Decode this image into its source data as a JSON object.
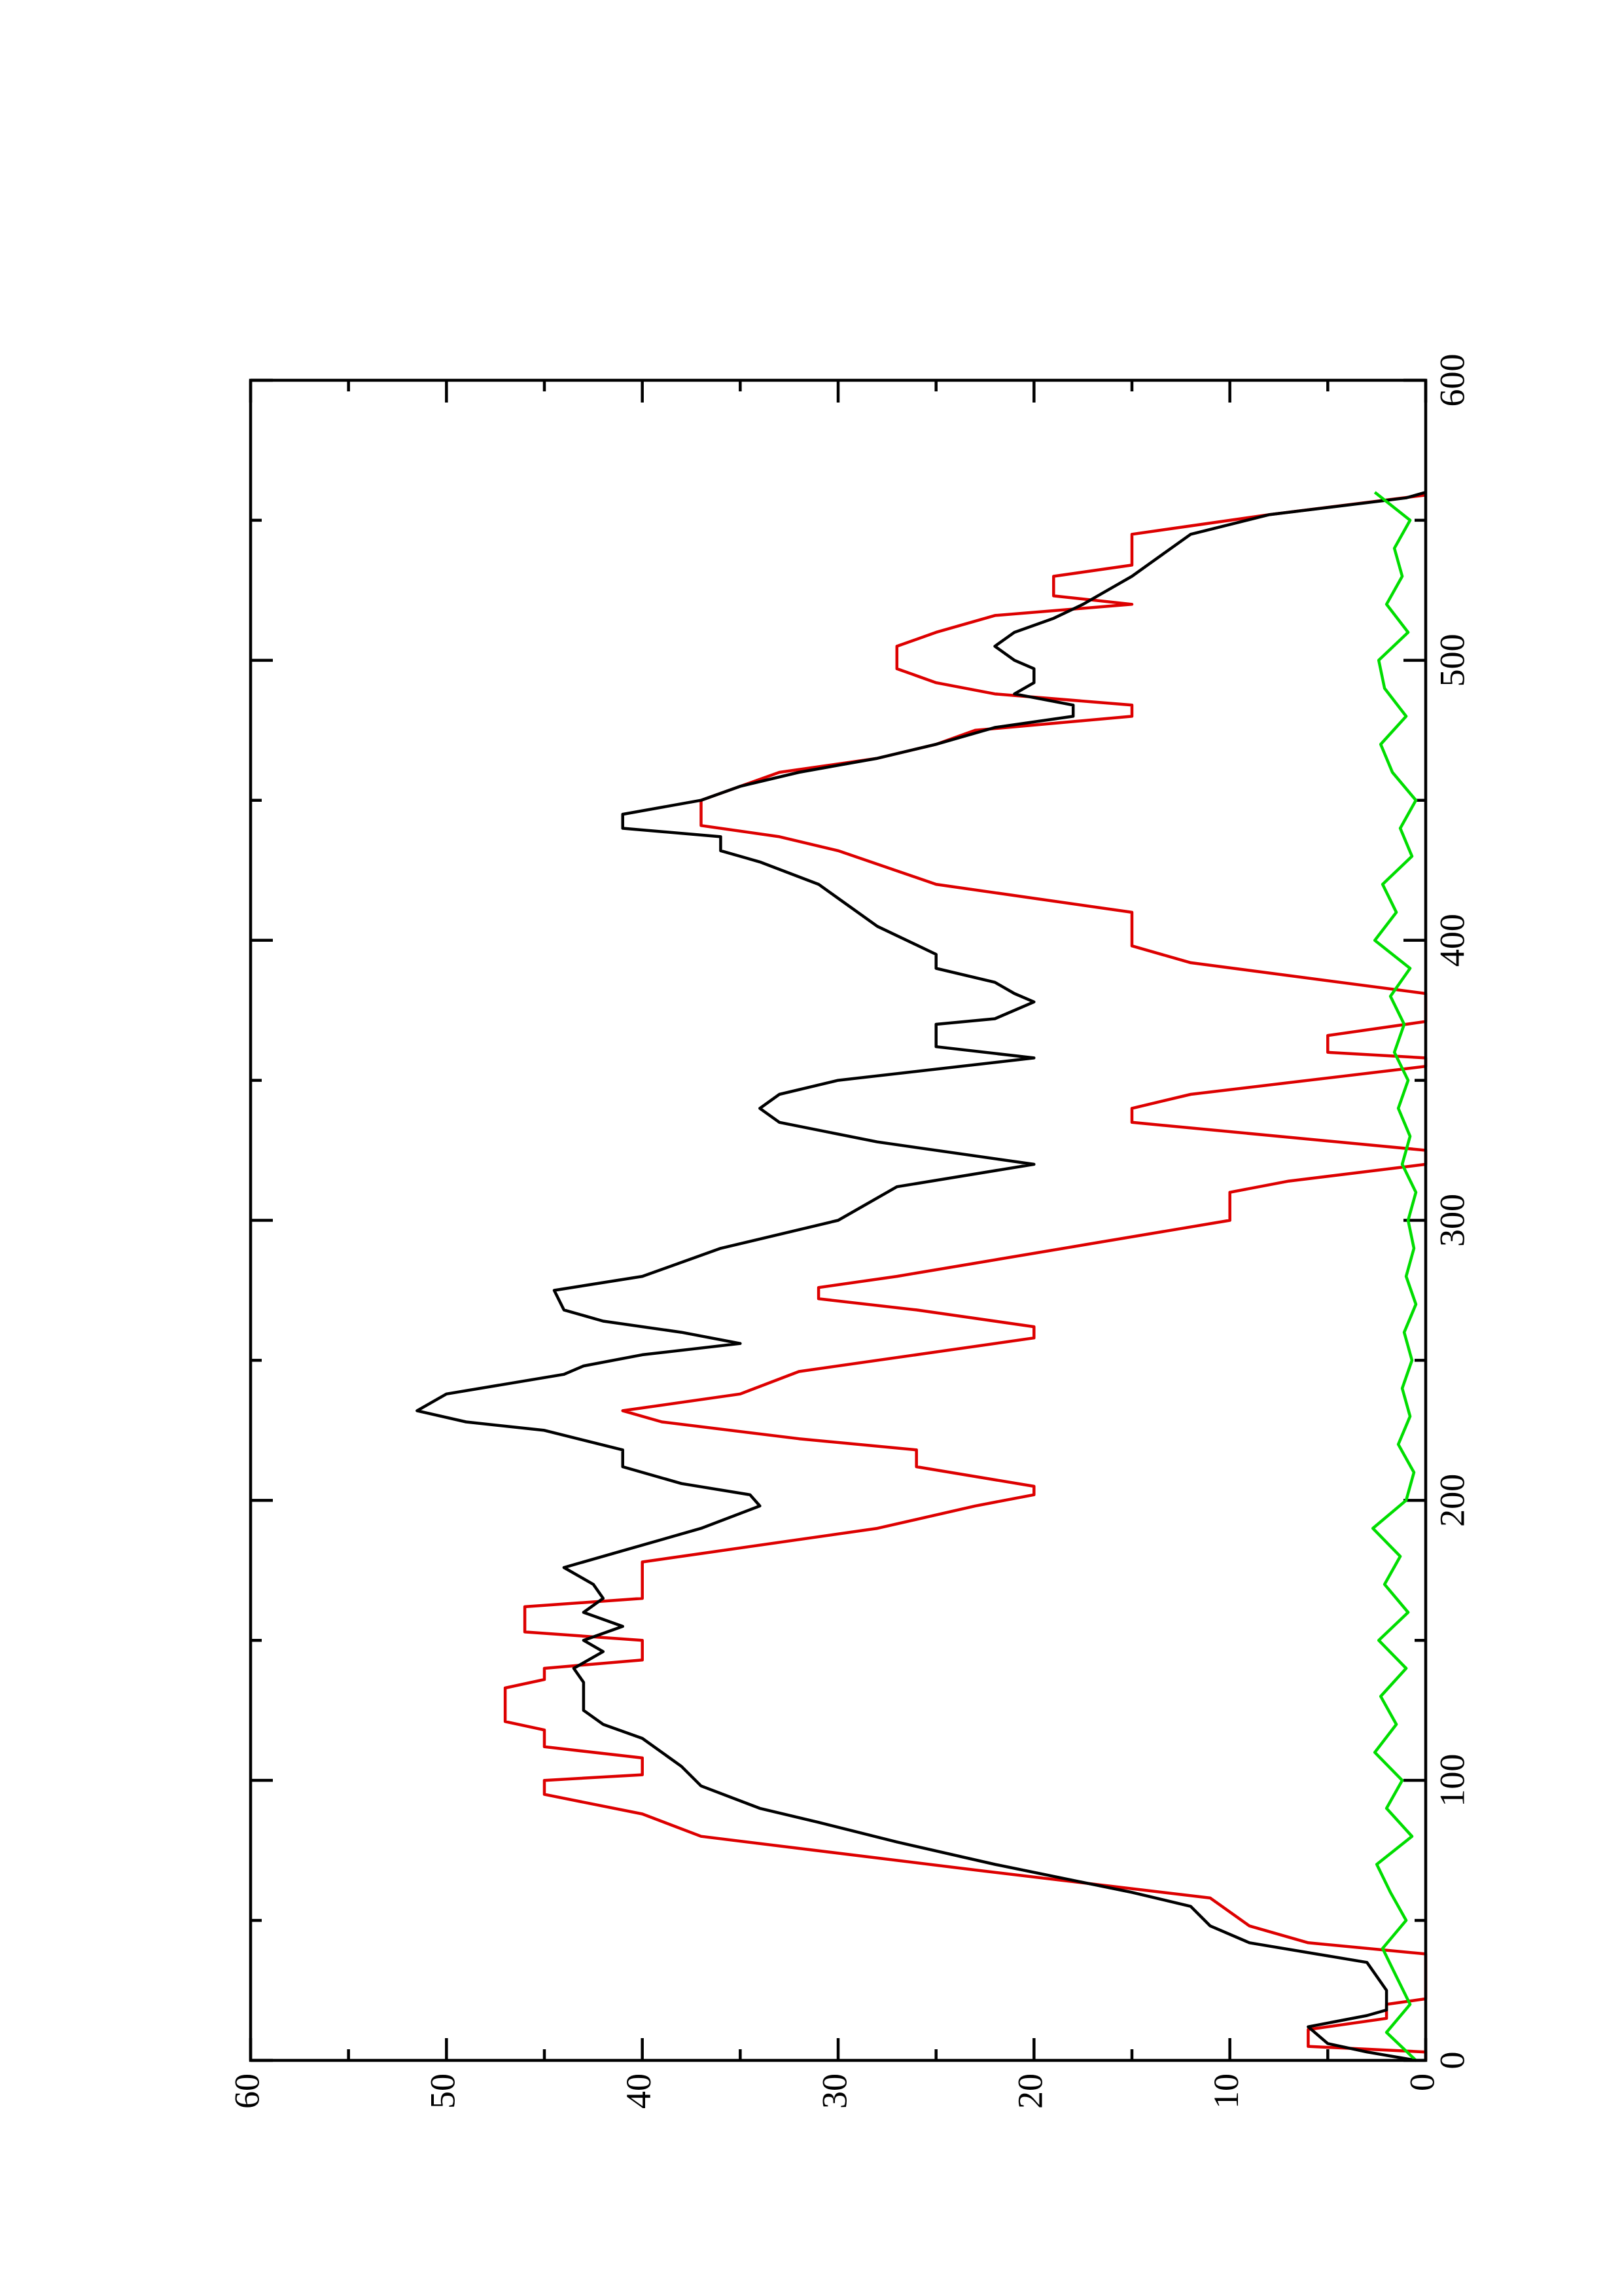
{
  "chart_data": {
    "type": "line",
    "rotated": true,
    "grid": false,
    "xlim": [
      0,
      600
    ],
    "xticks": [
      0,
      100,
      200,
      300,
      400,
      500,
      600
    ],
    "ylim": [
      0,
      60
    ],
    "yticks": [
      0,
      10,
      20,
      30,
      40,
      50,
      60
    ],
    "series": [
      {
        "color": "#dd0000",
        "x": [
          0,
          3,
          5,
          11,
          15,
          20,
          22,
          38,
          42,
          48,
          58,
          68,
          80,
          88,
          95,
          100,
          102,
          108,
          112,
          118,
          121,
          133,
          136,
          140,
          143,
          150,
          153,
          162,
          165,
          178,
          181,
          190,
          198,
          202,
          205,
          212,
          218,
          222,
          228,
          232,
          238,
          246,
          252,
          258,
          262,
          268,
          272,
          276,
          280,
          300,
          310,
          314,
          320,
          325,
          335,
          340,
          345,
          355,
          358,
          360,
          366,
          371,
          381,
          392,
          398,
          410,
          415,
          420,
          432,
          437,
          441,
          450,
          455,
          460,
          465,
          470,
          475,
          480,
          484,
          488,
          492,
          497,
          505,
          510,
          516,
          520,
          523,
          530,
          534,
          545,
          552,
          559
        ],
        "values": [
          0,
          0,
          6,
          6,
          2,
          2,
          0,
          0,
          6,
          9,
          11,
          23,
          37,
          40,
          45,
          45,
          40,
          40,
          45,
          45,
          47,
          47,
          45,
          45,
          40,
          40,
          46,
          46,
          40,
          40,
          37,
          28,
          23,
          20,
          20,
          26,
          26,
          32,
          39,
          41,
          35,
          32,
          26,
          20,
          20,
          26,
          31,
          31,
          27,
          10,
          10,
          7,
          0,
          0,
          15,
          15,
          12,
          0,
          0,
          5,
          5,
          0,
          0,
          12,
          15,
          15,
          20,
          25,
          30,
          33,
          37,
          37,
          35,
          33,
          28,
          25,
          23,
          15,
          15,
          22,
          25,
          27,
          27,
          25,
          22,
          15,
          19,
          19,
          15,
          15,
          8,
          0
        ]
      },
      {
        "color": "#000000",
        "x": [
          0,
          3,
          6,
          12,
          16,
          18,
          25,
          30,
          35,
          42,
          48,
          55,
          60,
          70,
          78,
          85,
          90,
          98,
          105,
          115,
          120,
          125,
          130,
          135,
          140,
          146,
          150,
          155,
          160,
          165,
          170,
          176,
          182,
          190,
          198,
          202,
          206,
          212,
          218,
          225,
          228,
          232,
          238,
          245,
          248,
          252,
          256,
          260,
          264,
          268,
          275,
          280,
          290,
          300,
          312,
          320,
          328,
          335,
          340,
          345,
          350,
          358,
          362,
          370,
          372,
          378,
          381,
          385,
          390,
          395,
          405,
          415,
          420,
          428,
          432,
          437,
          440,
          445,
          450,
          455,
          460,
          465,
          470,
          476,
          480,
          484,
          488,
          492,
          497,
          500,
          505,
          510,
          515,
          520,
          530,
          535,
          545,
          552,
          558,
          560
        ],
        "values": [
          0.5,
          3,
          5,
          6,
          3,
          2,
          2,
          2.5,
          3,
          9,
          11,
          12,
          15,
          22,
          27,
          31,
          34,
          37,
          38,
          40,
          42,
          43,
          43,
          43,
          43.5,
          42,
          43,
          41,
          43,
          42,
          42.5,
          44,
          41,
          37,
          34,
          34.5,
          38,
          41,
          41,
          45,
          49,
          51.5,
          50,
          44,
          43,
          40,
          35,
          38,
          42,
          44,
          44.5,
          40,
          36,
          30,
          27,
          20,
          28,
          33,
          34,
          33,
          30,
          20,
          25,
          25,
          22,
          20,
          21,
          22,
          25,
          25,
          28,
          30,
          31,
          34,
          36,
          36,
          41,
          41,
          37,
          35,
          32,
          28,
          25,
          22,
          18,
          18,
          21,
          20,
          20,
          21,
          22,
          21,
          19,
          17.5,
          15,
          14,
          12,
          8,
          1,
          0
        ]
      },
      {
        "color": "#00dd00",
        "x": [
          0,
          10,
          20,
          30,
          40,
          50,
          60,
          70,
          80,
          90,
          100,
          110,
          120,
          130,
          140,
          150,
          160,
          170,
          180,
          190,
          200,
          210,
          220,
          230,
          240,
          250,
          260,
          270,
          280,
          290,
          300,
          310,
          320,
          330,
          340,
          350,
          360,
          370,
          380,
          390,
          400,
          410,
          420,
          430,
          440,
          450,
          460,
          470,
          480,
          490,
          500,
          510,
          520,
          530,
          540,
          550,
          560
        ],
        "values": [
          0.5,
          2,
          0.8,
          1.5,
          2.2,
          1,
          1.8,
          2.5,
          0.7,
          2,
          1.2,
          2.6,
          1.5,
          2.3,
          1,
          2.4,
          0.9,
          2.1,
          1.3,
          2.7,
          1,
          0.6,
          1.4,
          0.8,
          1.2,
          0.7,
          1.1,
          0.5,
          1,
          0.6,
          0.9,
          0.5,
          1.2,
          0.8,
          1.4,
          0.9,
          1.6,
          1.1,
          1.8,
          0.8,
          2.6,
          1.5,
          2.2,
          0.7,
          1.3,
          0.5,
          1.7,
          2.3,
          1,
          2.1,
          2.4,
          0.9,
          2,
          1.2,
          1.6,
          0.8,
          2.6
        ]
      }
    ]
  }
}
